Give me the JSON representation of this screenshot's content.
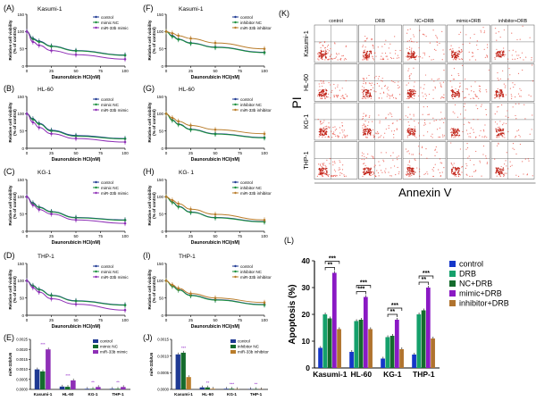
{
  "colors": {
    "control": "#1f3a93",
    "ctrl2": "#1c2f7a",
    "green": "#1a8f3c",
    "purple": "#8e2fb6",
    "orange": "#b97c2a",
    "bar_blue": "#1537c9",
    "bar_teal": "#15a06b",
    "bar_dkgreen": "#146b2c",
    "bar_purple": "#8a19c4",
    "bar_brown": "#b0732e",
    "flow_dot": "#e8463a"
  },
  "panels": {
    "A": {
      "tag": "(A)",
      "cell": "Kasumi-1"
    },
    "B": {
      "tag": "(B)",
      "cell": "HL-60"
    },
    "C": {
      "tag": "(C)",
      "cell": "KG-1"
    },
    "D": {
      "tag": "(D)",
      "cell": "THP-1"
    },
    "E": {
      "tag": "(E)"
    },
    "F": {
      "tag": "(F)",
      "cell": "Kasumi-1"
    },
    "G": {
      "tag": "(G)",
      "cell": "HL-60"
    },
    "H": {
      "tag": "(H)",
      "cell": "KG- 1"
    },
    "I": {
      "tag": "(I)",
      "cell": "THP-1"
    },
    "J": {
      "tag": "(J)"
    },
    "K": {
      "tag": "(K)"
    },
    "L": {
      "tag": "(L)"
    }
  },
  "axis_text": {
    "xlabel": "Daunorubicin HCl(nM)",
    "ylabel1": "Relative cell viability",
    "ylabel2": "(% of control)",
    "xticks": [
      "0",
      "25",
      "50",
      "75",
      "100"
    ],
    "yticks": [
      "0",
      "50",
      "100",
      "150"
    ]
  },
  "chart_data": [
    {
      "panel": "A",
      "type": "line",
      "xlim": [
        0,
        100
      ],
      "ylim": [
        0,
        150
      ],
      "x": [
        0,
        6.25,
        12.5,
        25,
        50,
        100
      ],
      "series": [
        {
          "name": "control",
          "values": [
            100,
            80,
            72,
            58,
            45,
            32
          ]
        },
        {
          "name": "mimic NC",
          "values": [
            100,
            78,
            70,
            57,
            44,
            31
          ]
        },
        {
          "name": "miR-33b mimic",
          "values": [
            100,
            70,
            60,
            45,
            33,
            20
          ]
        }
      ]
    },
    {
      "panel": "B",
      "type": "line",
      "xlim": [
        0,
        100
      ],
      "ylim": [
        0,
        150
      ],
      "x": [
        0,
        6.25,
        12.5,
        25,
        50,
        100
      ],
      "series": [
        {
          "name": "control",
          "values": [
            100,
            85,
            72,
            52,
            37,
            28
          ]
        },
        {
          "name": "mimic NC",
          "values": [
            100,
            83,
            70,
            50,
            35,
            27
          ]
        },
        {
          "name": "miR-33b mimic",
          "values": [
            100,
            75,
            60,
            42,
            28,
            18
          ]
        }
      ]
    },
    {
      "panel": "C",
      "type": "line",
      "xlim": [
        0,
        100
      ],
      "ylim": [
        0,
        150
      ],
      "x": [
        0,
        6.25,
        12.5,
        25,
        50,
        100
      ],
      "series": [
        {
          "name": "control",
          "values": [
            100,
            82,
            70,
            57,
            40,
            33
          ]
        },
        {
          "name": "mimic NC",
          "values": [
            100,
            80,
            69,
            56,
            39,
            32
          ]
        },
        {
          "name": "miR-33b mimic",
          "values": [
            100,
            76,
            63,
            50,
            33,
            23
          ]
        }
      ]
    },
    {
      "panel": "D",
      "type": "line",
      "xlim": [
        0,
        100
      ],
      "ylim": [
        0,
        150
      ],
      "x": [
        0,
        6.25,
        12.5,
        25,
        50,
        100
      ],
      "series": [
        {
          "name": "control",
          "values": [
            100,
            86,
            75,
            58,
            42,
            30
          ]
        },
        {
          "name": "mimic NC",
          "values": [
            100,
            85,
            74,
            57,
            41,
            29
          ]
        },
        {
          "name": "miR-33b mimic",
          "values": [
            100,
            80,
            67,
            48,
            32,
            15
          ]
        }
      ]
    },
    {
      "panel": "F",
      "type": "line",
      "xlim": [
        0,
        100
      ],
      "ylim": [
        0,
        150
      ],
      "x": [
        0,
        6.25,
        12.5,
        25,
        50,
        100
      ],
      "series": [
        {
          "name": "control",
          "values": [
            100,
            88,
            78,
            67,
            55,
            40
          ]
        },
        {
          "name": "inhibitor NC",
          "values": [
            100,
            86,
            77,
            66,
            54,
            39
          ]
        },
        {
          "name": "miR-33b inhibitor",
          "values": [
            100,
            95,
            88,
            80,
            67,
            50
          ]
        }
      ]
    },
    {
      "panel": "G",
      "type": "line",
      "xlim": [
        0,
        100
      ],
      "ylim": [
        0,
        150
      ],
      "x": [
        0,
        6.25,
        12.5,
        25,
        50,
        100
      ],
      "series": [
        {
          "name": "control",
          "values": [
            100,
            82,
            70,
            55,
            42,
            31
          ]
        },
        {
          "name": "inhibitor NC",
          "values": [
            100,
            81,
            69,
            54,
            41,
            30
          ]
        },
        {
          "name": "miR-33b inhibitor",
          "values": [
            100,
            88,
            78,
            66,
            54,
            42
          ]
        }
      ]
    },
    {
      "panel": "H",
      "type": "line",
      "xlim": [
        0,
        100
      ],
      "ylim": [
        0,
        150
      ],
      "x": [
        0,
        6.25,
        12.5,
        25,
        50,
        100
      ],
      "series": [
        {
          "name": "control",
          "values": [
            100,
            85,
            72,
            56,
            40,
            28
          ]
        },
        {
          "name": "inhibitor NC",
          "values": [
            100,
            84,
            71,
            55,
            39,
            27
          ]
        },
        {
          "name": "miR-33b inhibitor",
          "values": [
            100,
            90,
            80,
            64,
            49,
            33
          ]
        }
      ]
    },
    {
      "panel": "I",
      "type": "line",
      "xlim": [
        0,
        100
      ],
      "ylim": [
        0,
        150
      ],
      "x": [
        0,
        6.25,
        12.5,
        25,
        50,
        100
      ],
      "series": [
        {
          "name": "control",
          "values": [
            100,
            85,
            74,
            58,
            45,
            31
          ]
        },
        {
          "name": "inhibitor NC",
          "values": [
            100,
            84,
            73,
            57,
            44,
            30
          ]
        },
        {
          "name": "miR-33b inhibitor",
          "values": [
            100,
            88,
            78,
            63,
            50,
            37
          ]
        }
      ]
    },
    {
      "panel": "E",
      "type": "bar",
      "ylabel": "miR-33b/U6",
      "ylim": [
        0,
        0.0025
      ],
      "yticks": [
        "0.0025",
        "0.0020",
        "0.0015",
        "0.0010",
        "0.0005",
        "0.0000"
      ],
      "categories": [
        "Kasumi-1",
        "HL-60",
        "KG-1",
        "THP-1"
      ],
      "series": [
        {
          "name": "control",
          "values": [
            0.001,
            0.00014,
            3e-05,
            3e-05
          ]
        },
        {
          "name": "mimic NC",
          "values": [
            0.0009,
            0.00013,
            3e-05,
            3e-05
          ]
        },
        {
          "name": "miR-33b mimic",
          "values": [
            0.002,
            0.00045,
            0.00012,
            0.00012
          ]
        }
      ],
      "sig": [
        "***",
        "***",
        "**",
        "**"
      ]
    },
    {
      "panel": "J",
      "type": "bar",
      "ylabel": "miR-33b/U6",
      "ylim": [
        0,
        0.0015
      ],
      "yticks": [
        "0.0015",
        "0.0010",
        "0.0005",
        "0.0000"
      ],
      "categories": [
        "Kasumi-1",
        "HL-60",
        "KG-1",
        "THP-1"
      ],
      "series": [
        {
          "name": "control",
          "values": [
            0.00105,
            6e-05,
            2e-05,
            1e-05
          ]
        },
        {
          "name": "inhibitor NC",
          "values": [
            0.0011,
            6e-05,
            2e-05,
            1e-05
          ]
        },
        {
          "name": "miR-33b inhibitor",
          "values": [
            0.00037,
            2e-05,
            1e-05,
            5e-06
          ]
        }
      ],
      "sig": [
        "***",
        "**",
        "***",
        "**"
      ]
    },
    {
      "panel": "L",
      "type": "bar",
      "ylabel": "Apoptosis (%)",
      "ylim": [
        0,
        40
      ],
      "yticks": [
        "0",
        "10",
        "20",
        "30",
        "40"
      ],
      "categories": [
        "Kasumi-1",
        "HL-60",
        "KG-1",
        "THP-1"
      ],
      "series": [
        {
          "name": "control",
          "values": [
            7.5,
            6,
            3.5,
            5
          ]
        },
        {
          "name": "DRB",
          "values": [
            20,
            17.5,
            11.5,
            20
          ]
        },
        {
          "name": "NC+DRB",
          "values": [
            18.5,
            18,
            12,
            21.5
          ]
        },
        {
          "name": "mimic+DRB",
          "values": [
            35.5,
            26.5,
            18,
            30
          ]
        },
        {
          "name": "inhibitor+DRB",
          "values": [
            14.5,
            14.5,
            7,
            11
          ]
        }
      ],
      "sig": [
        [
          "**",
          "***"
        ],
        [
          "***",
          "***"
        ],
        [
          "**",
          "***"
        ],
        [
          "**",
          "***"
        ]
      ]
    }
  ],
  "flow": {
    "cols": [
      "control",
      "DRB",
      "NC+DRB",
      "mimic+DRB",
      "inhibitor+DRB"
    ],
    "rows": [
      "Kasumi-1",
      "HL-60",
      "KG-1",
      "THP-1"
    ],
    "ylabel": "PI",
    "xlabel": "Annexin V"
  }
}
